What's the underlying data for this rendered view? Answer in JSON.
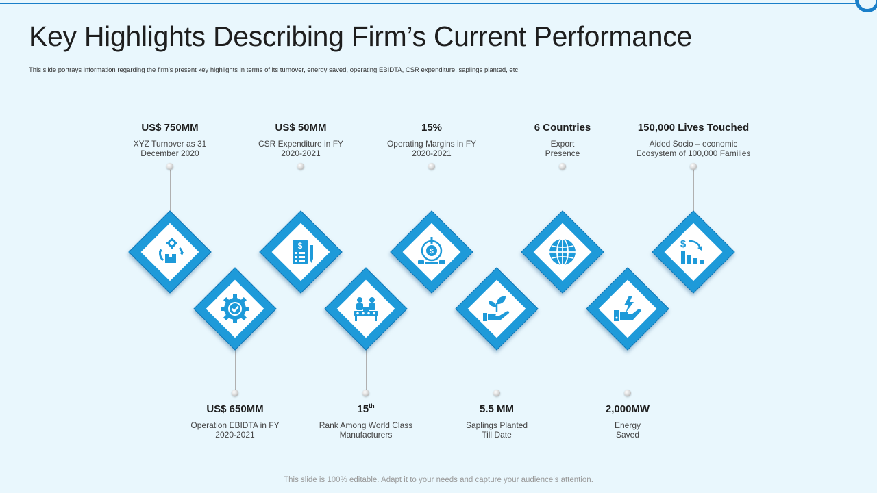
{
  "slide": {
    "title": "Key Highlights Describing Firm’s Current Performance",
    "subtitle": "This slide portrays information regarding the firm’s present key highlights in terms of its turnover, energy saved, operating EBIDTA, CSR expenditure, saplings planted, etc.",
    "footer": "This slide is 100% editable. Adapt it to your needs and capture your audience’s attention."
  },
  "colors": {
    "accent": "#1e9ad9",
    "accent_dark": "#1476b5",
    "background": "#e9f7fd",
    "text": "#1e1e1e"
  },
  "highlights": [
    {
      "value": "US$ 750MM",
      "desc": [
        "XYZ Turnover as 31",
        "December 2020"
      ],
      "icon": "turnover-cycle-icon"
    },
    {
      "value": "US$ 650MM",
      "desc": [
        "Operation EBIDTA in FY",
        "2020-2021"
      ],
      "icon": "gear-check-icon"
    },
    {
      "value": "US$ 50MM",
      "desc": [
        "CSR Expenditure in FY",
        "2020-2021"
      ],
      "icon": "expense-document-icon"
    },
    {
      "value": "15",
      "value_sup": "th",
      "desc": [
        "Rank Among World Class",
        "Manufacturers"
      ],
      "icon": "production-line-icon"
    },
    {
      "value": "15%",
      "desc": [
        "Operating Margins in FY",
        "2020-2021"
      ],
      "icon": "dollar-target-icon"
    },
    {
      "value": "5.5 MM",
      "desc": [
        "Saplings Planted",
        "Till Date"
      ],
      "icon": "hand-sapling-icon"
    },
    {
      "value": "6 Countries",
      "desc": [
        "Export",
        "Presence"
      ],
      "icon": "globe-icon"
    },
    {
      "value": "2,000MW",
      "desc": [
        "Energy",
        "Saved"
      ],
      "icon": "hand-energy-icon"
    },
    {
      "value": "150,000 Lives Touched",
      "desc": [
        "Aided Socio – economic",
        "Ecosystem of 100,000 Families"
      ],
      "icon": "dollar-decline-chart-icon"
    }
  ]
}
